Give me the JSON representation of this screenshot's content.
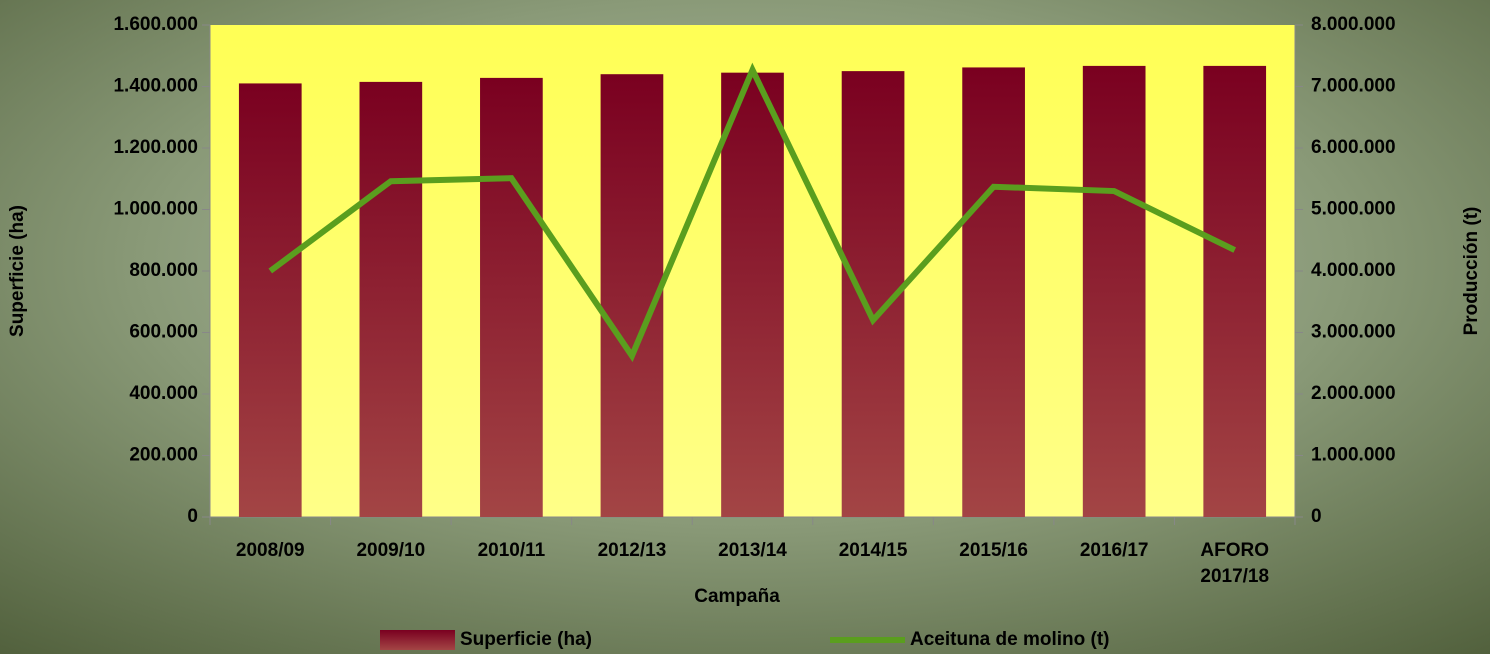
{
  "chart_data": {
    "type": "bar_line",
    "x_label": "Campaña",
    "y_label": "Superficie (ha)",
    "y2_label": "Producción (t)",
    "categories": [
      "2008/09",
      "2009/10",
      "2010/11",
      "2012/13",
      "2013/14",
      "2014/15",
      "2015/16",
      "2016/17",
      "AFORO 2017/18"
    ],
    "series": [
      {
        "name": "Superficie (ha)",
        "color": "#7a0020",
        "type": "bar",
        "axis": "y",
        "values": [
          1410000,
          1415000,
          1428000,
          1440000,
          1445000,
          1450000,
          1462000,
          1467000,
          1467000
        ]
      },
      {
        "name": "Aceituna de molino (t)",
        "color": "#5a9e1e",
        "type": "line",
        "axis": "y2",
        "values": [
          4000000,
          5460000,
          5510000,
          2620000,
          7270000,
          3200000,
          5370000,
          5300000,
          4340000
        ]
      }
    ],
    "ylim": [
      0,
      1600000
    ],
    "yticks": [
      0,
      {
        "value": 200000,
        "label": "200.000"
      },
      {
        "value": 400000,
        "label": "400.000"
      },
      {
        "value": 600000,
        "label": "600.000"
      },
      {
        "value": 800000,
        "label": "800.000"
      },
      {
        "value": 1000000,
        "label": "1.000.000"
      },
      {
        "value": 1200000,
        "label": "1.200.000"
      },
      {
        "value": 1400000,
        "label": "1.400.000"
      },
      {
        "value": 1600000,
        "label": "1.600.000"
      }
    ],
    "y2lim": [
      0,
      8000000
    ],
    "y2ticks": [
      0,
      {
        "value": 1000000,
        "label": "1.000.000"
      },
      {
        "value": 2000000,
        "label": "2.000.000"
      },
      {
        "value": 3000000,
        "label": "3.000.000"
      },
      {
        "value": 4000000,
        "label": "4.000.000"
      },
      {
        "value": 5000000,
        "label": "5.000.000"
      },
      {
        "value": 6000000,
        "label": "6.000.000"
      },
      {
        "value": 7000000,
        "label": "7.000.000"
      },
      {
        "value": 8000000,
        "label": "8.000.000"
      }
    ],
    "legend": "bottom"
  }
}
